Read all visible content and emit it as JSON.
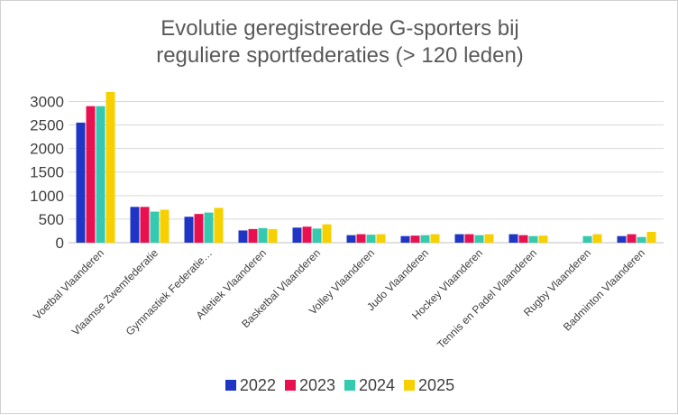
{
  "chart_data": {
    "type": "bar",
    "title": [
      "Evolutie geregistreerde G-sporters bij",
      "reguliere sportfederaties (> 120 leden)"
    ],
    "categories": [
      "Voetbal Vlaanderen",
      "Vlaamse Zwemfederatie",
      "Gymnastiek Federatie…",
      "Atletiek Vlaanderen",
      "Basketbal Vlaanderen",
      "Volley Vlaanderen",
      "Judo Vlaanderen",
      "Hockey Vlaanderen",
      "Tennis en Padel Vlaanderen",
      "Rugby Vlaanderen",
      "Badminton Vlaanderen"
    ],
    "series": [
      {
        "name": "2022",
        "color": "#1f35c4",
        "values": [
          2550,
          760,
          550,
          260,
          320,
          160,
          140,
          180,
          180,
          null,
          140
        ]
      },
      {
        "name": "2023",
        "color": "#e8104f",
        "values": [
          2900,
          760,
          610,
          290,
          340,
          180,
          150,
          180,
          160,
          null,
          180
        ]
      },
      {
        "name": "2024",
        "color": "#35c9b0",
        "values": [
          2900,
          660,
          640,
          310,
          300,
          170,
          160,
          160,
          140,
          140,
          120
        ]
      },
      {
        "name": "2025",
        "color": "#f7d000",
        "values": [
          3200,
          700,
          740,
          290,
          390,
          180,
          180,
          180,
          150,
          180,
          230
        ]
      }
    ],
    "yticks": [
      0,
      500,
      1000,
      1500,
      2000,
      2500,
      3000
    ],
    "ylim": [
      0,
      3200
    ],
    "grid": true,
    "legend": "bottom"
  }
}
